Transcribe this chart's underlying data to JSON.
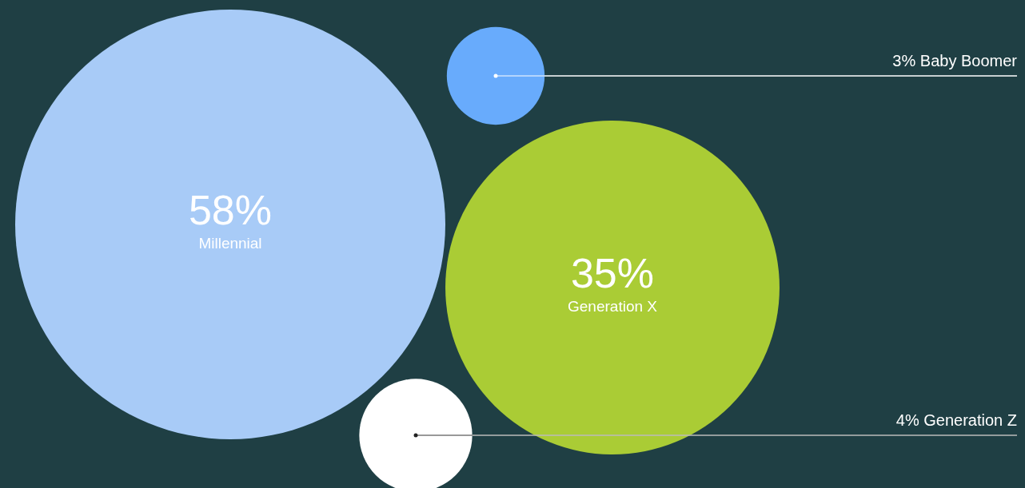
{
  "chart_data": {
    "type": "other",
    "categories": [
      "Millennial",
      "Generation X",
      "Baby Boomer",
      "Generation Z"
    ],
    "values": [
      58,
      35,
      3,
      4
    ],
    "value_labels": [
      "58%",
      "35%",
      "3%",
      "4%"
    ],
    "colors": [
      "#a8cbf7",
      "#aacc35",
      "#68abfc",
      "#ffffff"
    ]
  }
}
